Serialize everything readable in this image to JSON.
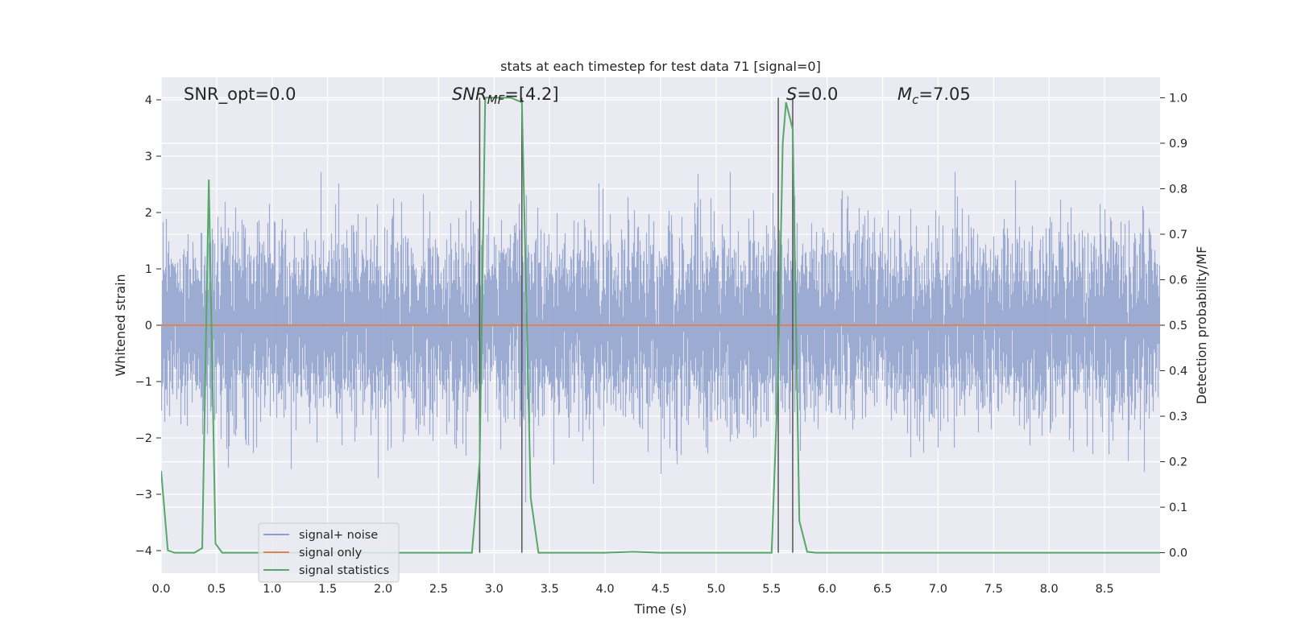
{
  "chart_data": {
    "type": "line",
    "title": "stats at each timestep for test data 71 [signal=0]",
    "xlabel": "Time (s)",
    "ylabel": "Whitened strain",
    "y2label": "Detection probability/MF",
    "xlim": [
      0.0,
      9.0
    ],
    "ylim": [
      -4.4,
      4.4
    ],
    "y2lim": [
      -0.045,
      1.045
    ],
    "x_ticks": [
      "0.0",
      "0.5",
      "1.0",
      "1.5",
      "2.0",
      "2.5",
      "3.0",
      "3.5",
      "4.0",
      "4.5",
      "5.0",
      "5.5",
      "6.0",
      "6.5",
      "7.0",
      "7.5",
      "8.0",
      "8.5"
    ],
    "y_ticks": [
      "−4",
      "−3",
      "−2",
      "−1",
      "0",
      "1",
      "2",
      "3",
      "4"
    ],
    "y2_ticks": [
      "0.0",
      "0.1",
      "0.2",
      "0.3",
      "0.4",
      "0.5",
      "0.6",
      "0.7",
      "0.8",
      "0.9",
      "1.0"
    ],
    "grid": true,
    "legend_position": "lower-left",
    "annotations": {
      "snr_opt": "SNR_opt=0.0",
      "snr_mf_base": "SNR",
      "snr_mf_sub": "MF",
      "snr_mf_rest": "=[4.2]",
      "s_label": "S",
      "s_rest": "=0.0",
      "mc_base": "M",
      "mc_sub": "c",
      "mc_rest": "=7.05"
    },
    "colors": {
      "signal_noise": "#8da0cb",
      "signal_only": "#dd8452",
      "signal_statistics": "#55a868",
      "background": "#eaeaf2",
      "vline": "#555555"
    },
    "vertical_lines_x": [
      2.87,
      3.25,
      5.56,
      5.69
    ],
    "series": [
      {
        "name": "signal+ noise",
        "axis": "left",
        "noise_std": 0.8,
        "peak_range": [
          -4.0,
          4.0
        ]
      },
      {
        "name": "signal only",
        "axis": "left",
        "x": [
          0.0,
          9.0
        ],
        "y": [
          0.0,
          0.0
        ]
      },
      {
        "name": "signal statistics",
        "axis": "right",
        "x": [
          0.0,
          0.06,
          0.12,
          0.2,
          0.3,
          0.37,
          0.43,
          0.49,
          0.55,
          0.62,
          1.0,
          2.0,
          2.8,
          2.87,
          2.92,
          2.96,
          3.05,
          3.15,
          3.25,
          3.33,
          3.4,
          3.5,
          4.0,
          4.25,
          4.5,
          5.0,
          5.5,
          5.56,
          5.6,
          5.63,
          5.69,
          5.75,
          5.82,
          5.9,
          6.0,
          7.0,
          8.0,
          9.0
        ],
        "y": [
          0.18,
          0.005,
          0.0,
          0.0,
          0.0,
          0.01,
          0.82,
          0.02,
          0.0,
          0.0,
          0.0,
          0.0,
          0.0,
          0.2,
          1.0,
          1.0,
          1.0,
          1.0,
          0.99,
          0.12,
          0.0,
          0.0,
          0.0,
          0.002,
          0.0,
          0.0,
          0.0,
          0.4,
          0.9,
          0.99,
          0.93,
          0.07,
          0.002,
          0.0,
          0.0,
          0.0,
          0.0,
          0.0
        ]
      }
    ]
  }
}
